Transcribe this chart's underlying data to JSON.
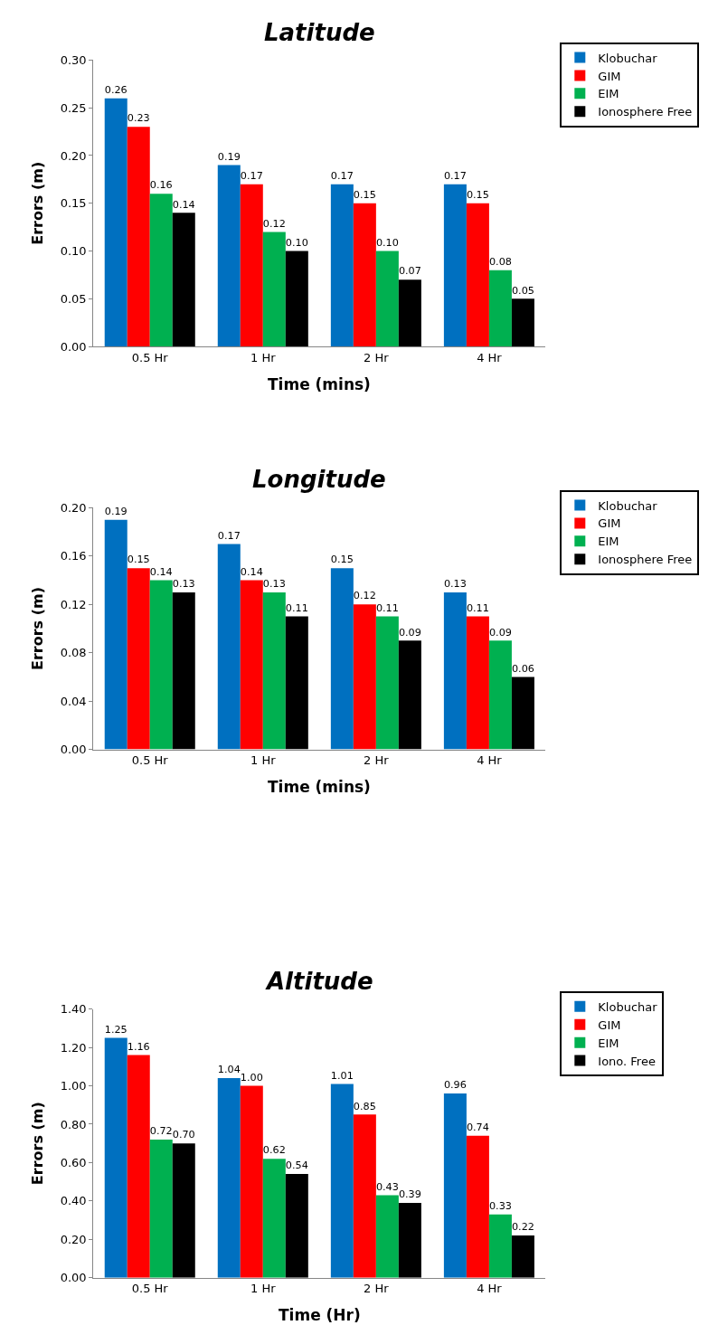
{
  "chart_data": [
    {
      "type": "bar",
      "title": "Latitude",
      "xlabel": "Time (mins)",
      "ylabel": "Errors (m)",
      "categories": [
        "0.5 Hr",
        "1 Hr",
        "2 Hr",
        "4 Hr"
      ],
      "legend": "top right",
      "grid": false,
      "ylim": [
        0,
        0.3
      ],
      "yticks": [
        {
          "value": 0,
          "label": "0.00"
        },
        {
          "value": 0.05,
          "label": "0.05"
        },
        {
          "value": 0.1,
          "label": "0.10"
        },
        {
          "value": 0.15,
          "label": "0.15"
        },
        {
          "value": 0.2,
          "label": "0.20"
        },
        {
          "value": 0.25,
          "label": "0.25"
        },
        {
          "value": 0.3,
          "label": "0.30"
        }
      ],
      "series": [
        {
          "name": "Klobuchar",
          "color": "#0070c0",
          "values": [
            0.26,
            0.19,
            0.17,
            0.17
          ],
          "value_labels": [
            "0.26",
            "0.19",
            "0.17",
            "0.17"
          ]
        },
        {
          "name": "GIM",
          "color": "#ff0000",
          "values": [
            0.23,
            0.17,
            0.15,
            0.15
          ],
          "value_labels": [
            "0.23",
            "0.17",
            "0.15",
            "0.15"
          ]
        },
        {
          "name": "EIM",
          "color": "#00b050",
          "values": [
            0.16,
            0.12,
            0.1,
            0.08
          ],
          "value_labels": [
            "0.16",
            "0.12",
            "0.10",
            "0.08"
          ]
        },
        {
          "name": "Ionosphere Free",
          "color": "#000000",
          "values": [
            0.14,
            0.1,
            0.07,
            0.05
          ],
          "value_labels": [
            "0.14",
            "0.10",
            "0.07",
            "0.05"
          ]
        }
      ]
    },
    {
      "type": "bar",
      "title": "Longitude",
      "xlabel": "Time (mins)",
      "ylabel": "Errors (m)",
      "categories": [
        "0.5 Hr",
        "1 Hr",
        "2 Hr",
        "4 Hr"
      ],
      "legend": "top right",
      "grid": false,
      "ylim": [
        0,
        0.2
      ],
      "yticks": [
        {
          "value": 0,
          "label": "0.00"
        },
        {
          "value": 0.04,
          "label": "0.04"
        },
        {
          "value": 0.08,
          "label": "0.08"
        },
        {
          "value": 0.12,
          "label": "0.12"
        },
        {
          "value": 0.16,
          "label": "0.16"
        },
        {
          "value": 0.2,
          "label": "0.20"
        }
      ],
      "series": [
        {
          "name": "Klobuchar",
          "color": "#0070c0",
          "values": [
            0.19,
            0.17,
            0.15,
            0.13
          ],
          "value_labels": [
            "0.19",
            "0.17",
            "0.15",
            "0.13"
          ]
        },
        {
          "name": "GIM",
          "color": "#ff0000",
          "values": [
            0.15,
            0.14,
            0.12,
            0.11
          ],
          "value_labels": [
            "0.15",
            "0.14",
            "0.12",
            "0.11"
          ]
        },
        {
          "name": "EIM",
          "color": "#00b050",
          "values": [
            0.14,
            0.13,
            0.11,
            0.09
          ],
          "value_labels": [
            "0.14",
            "0.13",
            "0.11",
            "0.09"
          ]
        },
        {
          "name": "Ionosphere Free",
          "color": "#000000",
          "values": [
            0.13,
            0.11,
            0.09,
            0.06
          ],
          "value_labels": [
            "0.13",
            "0.11",
            "0.09",
            "0.06"
          ]
        }
      ]
    },
    {
      "type": "bar",
      "title": "Altitude",
      "xlabel": "Time (Hr)",
      "ylabel": "Errors (m)",
      "categories": [
        "0.5 Hr",
        "1 Hr",
        "2 Hr",
        "4 Hr"
      ],
      "legend": "top right",
      "grid": false,
      "ylim": [
        0,
        1.4
      ],
      "yticks": [
        {
          "value": 0,
          "label": "0.00"
        },
        {
          "value": 0.2,
          "label": "0.20"
        },
        {
          "value": 0.4,
          "label": "0.40"
        },
        {
          "value": 0.6,
          "label": "0.60"
        },
        {
          "value": 0.8,
          "label": "0.80"
        },
        {
          "value": 1.0,
          "label": "1.00"
        },
        {
          "value": 1.2,
          "label": "1.20"
        },
        {
          "value": 1.4,
          "label": "1.40"
        }
      ],
      "series": [
        {
          "name": "Klobuchar",
          "color": "#0070c0",
          "values": [
            1.25,
            1.04,
            1.01,
            0.96
          ],
          "value_labels": [
            "1.25",
            "1.04",
            "1.01",
            "0.96"
          ]
        },
        {
          "name": "GIM",
          "color": "#ff0000",
          "values": [
            1.16,
            1.0,
            0.85,
            0.74
          ],
          "value_labels": [
            "1.16",
            "1.00",
            "0.85",
            "0.74"
          ]
        },
        {
          "name": "EIM",
          "color": "#00b050",
          "values": [
            0.72,
            0.62,
            0.43,
            0.33
          ],
          "value_labels": [
            "0.72",
            "0.62",
            "0.43",
            "0.33"
          ]
        },
        {
          "name": "Iono. Free",
          "color": "#000000",
          "values": [
            0.7,
            0.54,
            0.39,
            0.22
          ],
          "value_labels": [
            "0.70",
            "0.54",
            "0.39",
            "0.22"
          ]
        }
      ]
    }
  ]
}
